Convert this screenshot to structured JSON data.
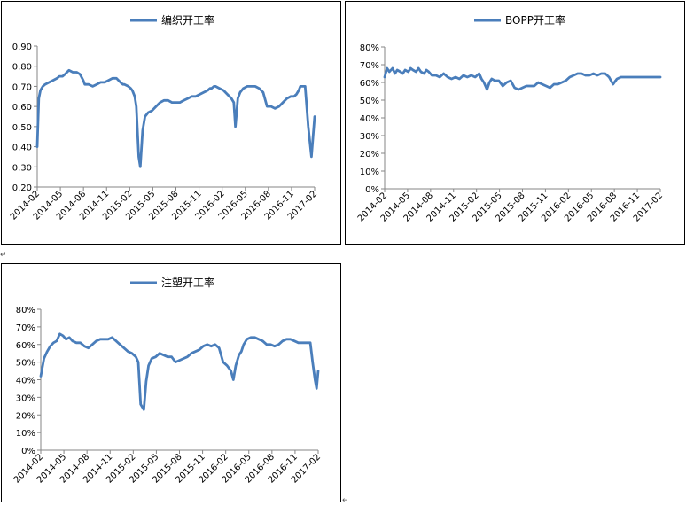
{
  "colors": {
    "series": "#4a7ebb",
    "axis": "#868686",
    "text": "#000000"
  },
  "return_mark": "↵",
  "chart_data": [
    {
      "type": "line",
      "title": "编织开工率",
      "legend_position": "top",
      "grid": false,
      "ylim": [
        0.2,
        0.9
      ],
      "y_ticks": [
        "0.20",
        "0.30",
        "0.40",
        "0.50",
        "0.60",
        "0.70",
        "0.80",
        "0.90"
      ],
      "y_tick_values": [
        0.2,
        0.3,
        0.4,
        0.5,
        0.6,
        0.7,
        0.8,
        0.9
      ],
      "x_ticks": [
        "2014-02",
        "2014-05",
        "2014-08",
        "2014-11",
        "2015-02",
        "2015-05",
        "2015-08",
        "2015-11",
        "2016-02",
        "2016-05",
        "2016-08",
        "2016-11",
        "2017-02"
      ],
      "series": [
        {
          "name": "编织开工率",
          "x": [
            0,
            0.2,
            0.4,
            0.7,
            1,
            1.5,
            2,
            2.5,
            2.8,
            3.2,
            3.5,
            4,
            4.5,
            5,
            5.4,
            5.8,
            6,
            6.5,
            7,
            7.5,
            8,
            8.5,
            9,
            9.5,
            10,
            10.5,
            10.8,
            11,
            11.5,
            11.8,
            12,
            12.1,
            12.3,
            12.5,
            12.8,
            13,
            13.3,
            13.6,
            14,
            14.5,
            15,
            15.5,
            16,
            16.5,
            17,
            17.5,
            18,
            18.5,
            19,
            19.5,
            20,
            20.5,
            21,
            21.5,
            21.8,
            22,
            22.3,
            22.5,
            23,
            23.5,
            24,
            24.5,
            24.8,
            25,
            25.3,
            25.6,
            26,
            26.5,
            27,
            27.5,
            28,
            28.5,
            29,
            29.5,
            30,
            30.5,
            31,
            31.5,
            32,
            32.4,
            32.7,
            33,
            33.2,
            33.5,
            33.8
          ],
          "y": [
            0.4,
            0.64,
            0.68,
            0.7,
            0.71,
            0.72,
            0.73,
            0.74,
            0.75,
            0.75,
            0.76,
            0.78,
            0.77,
            0.77,
            0.76,
            0.73,
            0.71,
            0.71,
            0.7,
            0.71,
            0.72,
            0.72,
            0.73,
            0.74,
            0.74,
            0.72,
            0.71,
            0.71,
            0.7,
            0.69,
            0.68,
            0.67,
            0.65,
            0.6,
            0.35,
            0.3,
            0.48,
            0.55,
            0.57,
            0.58,
            0.6,
            0.62,
            0.63,
            0.63,
            0.62,
            0.62,
            0.62,
            0.63,
            0.64,
            0.65,
            0.65,
            0.66,
            0.67,
            0.68,
            0.69,
            0.69,
            0.7,
            0.7,
            0.69,
            0.68,
            0.66,
            0.64,
            0.62,
            0.5,
            0.64,
            0.67,
            0.69,
            0.7,
            0.7,
            0.7,
            0.69,
            0.67,
            0.6,
            0.6,
            0.59,
            0.6,
            0.62,
            0.64,
            0.65,
            0.65,
            0.66,
            0.68,
            0.7,
            0.7,
            0.7
          ]
        }
      ],
      "tail": {
        "x": [
          33.8,
          34.2,
          34.6,
          35.0
        ],
        "y": [
          0.7,
          0.5,
          0.35,
          0.55
        ]
      }
    },
    {
      "type": "line",
      "title": "BOPP开工率",
      "legend_position": "top",
      "grid": false,
      "ylim": [
        0,
        80
      ],
      "y_ticks": [
        "0%",
        "10%",
        "20%",
        "30%",
        "40%",
        "50%",
        "60%",
        "70%",
        "80%"
      ],
      "y_tick_values": [
        0,
        10,
        20,
        30,
        40,
        50,
        60,
        70,
        80
      ],
      "x_ticks": [
        "2014-02",
        "2014-05",
        "2014-08",
        "2014-11",
        "2015-02",
        "2015-05",
        "2015-08",
        "2015-11",
        "2016-02",
        "2016-05",
        "2016-08",
        "2016-11",
        "2017-02"
      ],
      "series": [
        {
          "name": "BOPP开工率",
          "x": [
            0,
            0.3,
            0.6,
            1,
            1.3,
            1.6,
            2,
            2.3,
            2.6,
            3,
            3.3,
            3.6,
            4,
            4.3,
            4.6,
            5,
            5.3,
            5.6,
            6,
            6.5,
            7,
            7.5,
            8,
            8.5,
            9,
            9.5,
            10,
            10.5,
            11,
            11.5,
            12,
            12.3,
            12.6,
            13,
            13.3,
            13.6,
            14,
            14.5,
            15,
            15.5,
            16,
            16.5,
            17,
            17.5,
            18,
            18.5,
            19,
            19.5,
            20,
            20.5,
            21,
            21.5,
            22,
            22.5,
            23,
            23.5,
            24,
            24.5,
            25,
            25.5,
            26,
            26.5,
            27,
            27.5,
            28,
            28.5,
            29,
            29.5,
            30,
            30.5,
            31,
            31.5,
            32,
            33,
            34,
            35
          ],
          "y": [
            63,
            68,
            66,
            68,
            65,
            67,
            66,
            65,
            67,
            66,
            68,
            67,
            66,
            68,
            66,
            65,
            67,
            66,
            64,
            64,
            63,
            65,
            63,
            62,
            63,
            62,
            64,
            63,
            64,
            63,
            65,
            62,
            60,
            56,
            60,
            62,
            61,
            61,
            58,
            60,
            61,
            57,
            56,
            57,
            58,
            58,
            58,
            60,
            59,
            58,
            57,
            59,
            59,
            60,
            61,
            63,
            64,
            65,
            65,
            64,
            64,
            65,
            64,
            65,
            65,
            63,
            59,
            62,
            63,
            63,
            63,
            63,
            63,
            63,
            63,
            63
          ]
        }
      ]
    },
    {
      "type": "line",
      "title": "注塑开工率",
      "legend_position": "top",
      "grid": false,
      "ylim": [
        0,
        80
      ],
      "y_ticks": [
        "0%",
        "10%",
        "20%",
        "30%",
        "40%",
        "50%",
        "60%",
        "70%",
        "80%"
      ],
      "y_tick_values": [
        0,
        10,
        20,
        30,
        40,
        50,
        60,
        70,
        80
      ],
      "x_ticks": [
        "2014-02",
        "2014-05",
        "2014-08",
        "2014-11",
        "2015-02",
        "2015-05",
        "2015-08",
        "2015-11",
        "2016-02",
        "2016-05",
        "2016-08",
        "2016-11",
        "2017-02"
      ],
      "series": [
        {
          "name": "注塑开工率",
          "x": [
            0,
            0.4,
            0.8,
            1.2,
            1.6,
            2,
            2.4,
            2.8,
            3.2,
            3.6,
            4,
            4.5,
            5,
            5.5,
            6,
            6.5,
            7,
            7.5,
            8,
            8.5,
            9,
            9.5,
            10,
            10.5,
            11,
            11.5,
            12,
            12.3,
            12.6,
            13,
            13.3,
            13.6,
            14,
            14.5,
            15,
            15.5,
            16,
            16.5,
            17,
            17.5,
            18,
            18.5,
            19,
            19.5,
            20,
            20.5,
            21,
            21.5,
            22,
            22.5,
            23,
            23.5,
            24,
            24.3,
            24.6,
            25,
            25.3,
            25.6,
            26,
            26.5,
            27,
            27.5,
            28,
            28.5,
            29,
            29.5,
            30,
            30.5,
            31,
            31.5,
            32,
            32.5,
            33,
            33.5,
            34,
            34.3,
            34.6,
            34.8,
            35
          ],
          "y": [
            42,
            52,
            56,
            59,
            61,
            62,
            66,
            65,
            63,
            64,
            62,
            61,
            61,
            59,
            58,
            60,
            62,
            63,
            63,
            63,
            64,
            62,
            60,
            58,
            56,
            55,
            53,
            50,
            26,
            23,
            39,
            48,
            52,
            53,
            55,
            54,
            53,
            53,
            50,
            51,
            52,
            53,
            55,
            56,
            57,
            59,
            60,
            59,
            60,
            58,
            50,
            48,
            45,
            40,
            48,
            54,
            56,
            60,
            63,
            64,
            64,
            63,
            62,
            60,
            60,
            59,
            60,
            62,
            63,
            63,
            62,
            61,
            61,
            61,
            61,
            50,
            40,
            35,
            45
          ]
        }
      ]
    }
  ]
}
